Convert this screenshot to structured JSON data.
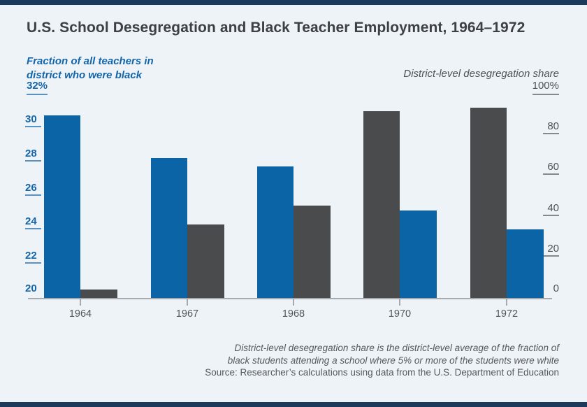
{
  "page": {
    "title": "U.S. School Desegregation and Black Teacher Employment, 1964–1972"
  },
  "colors": {
    "background": "#eef3f8",
    "banner": "#1c3a5c",
    "teachers_bar": "#0a64a6",
    "deseg_bar": "#4a4b4d",
    "left_axis_text": "#1566a9",
    "left_tick_underline": "#5b92c2",
    "right_axis_text": "#4e5257",
    "right_tick_underline": "#85888c",
    "title_text": "#3d4146",
    "axis_line": "#a7aaae",
    "xlabel_text": "#54575c",
    "caption_text": "#56595e"
  },
  "chart_data": {
    "type": "bar",
    "title": "U.S. School Desegregation and Black Teacher Employment, 1964–1972",
    "categories": [
      "1964",
      "1967",
      "1968",
      "1970",
      "1972"
    ],
    "series": [
      {
        "key": "teachers",
        "name": "Fraction of all teachers in district who were black",
        "axis": "left",
        "color_key": "teachers_bar",
        "values": [
          30.7,
          28.2,
          27.7,
          25.1,
          24.0
        ]
      },
      {
        "key": "deseg",
        "name": "District-level desegregation share",
        "axis": "right",
        "color_key": "deseg_bar",
        "values": [
          4,
          36,
          45,
          91,
          93
        ]
      }
    ],
    "bar_order_by_category": [
      [
        "teachers",
        "deseg"
      ],
      [
        "teachers",
        "deseg"
      ],
      [
        "teachers",
        "deseg"
      ],
      [
        "deseg",
        "teachers"
      ],
      [
        "deseg",
        "teachers"
      ]
    ],
    "left_axis": {
      "label_line1": "Fraction of all teachers in",
      "label_line2": "district who were black",
      "top_label": "32%",
      "ticks": [
        30,
        28,
        26,
        24,
        22,
        20
      ],
      "min": 20,
      "max": 32
    },
    "right_axis": {
      "label": "District-level desegregation share",
      "top_label": "100%",
      "ticks": [
        80,
        60,
        40,
        20,
        0
      ],
      "min": 0,
      "max": 100
    },
    "grid": false,
    "legend": "none"
  },
  "captions": {
    "note_line1": "District-level desegregation share is the district-level average of the fraction of",
    "note_line2": "black students attending a school where 5% or more of the students were white",
    "source": "Source: Researcher’s calculations using data from the U.S. Department of Education"
  }
}
